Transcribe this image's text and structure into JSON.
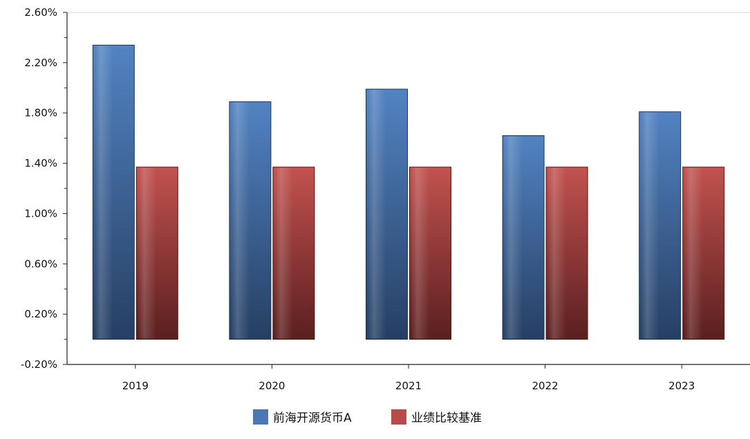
{
  "chart_data": {
    "type": "bar",
    "title": "",
    "xlabel": "",
    "ylabel": "",
    "categories": [
      "2019",
      "2020",
      "2021",
      "2022",
      "2023"
    ],
    "series": [
      {
        "name": "前海开源货币A",
        "values": [
          2.34,
          1.89,
          1.99,
          1.62,
          1.81
        ],
        "color": "#4a78b4"
      },
      {
        "name": "业绩比较基准",
        "values": [
          1.37,
          1.37,
          1.37,
          1.37,
          1.37
        ],
        "color": "#b84a48"
      }
    ],
    "ylim": [
      -0.2,
      2.6
    ],
    "yticks": [
      -0.2,
      0.2,
      0.6,
      1.0,
      1.4,
      1.8,
      2.2,
      2.6
    ],
    "ytick_labels": [
      "-0.20%",
      "0.20%",
      "0.60%",
      "1.00%",
      "1.40%",
      "1.80%",
      "2.20%",
      "2.60%"
    ],
    "grid": false,
    "legend_position": "bottom-center"
  }
}
